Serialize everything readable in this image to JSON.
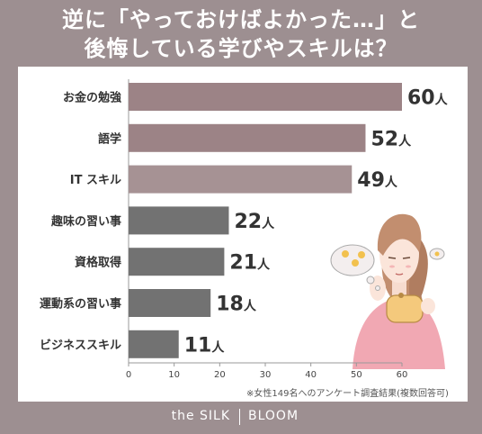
{
  "title_line1": "逆に「やっておけばよかった…」と",
  "title_line2": "後悔している学びやスキルは？",
  "footnote": "※女性149名へのアンケート調査結果(複数回答可)",
  "brand": {
    "left": "the SILK",
    "right": "BLOOM"
  },
  "colors": {
    "background": "#9d8f91",
    "bar_top": "#9c8386",
    "bar_mid": "#a69294",
    "bar_rest": "#727272"
  },
  "chart_data": {
    "type": "bar",
    "orientation": "horizontal",
    "categories": [
      "お金の勉強",
      "語学",
      "IT スキル",
      "趣味の習い事",
      "資格取得",
      "運動系の習い事",
      "ビジネススキル"
    ],
    "values": [
      60,
      52,
      49,
      22,
      21,
      18,
      11
    ],
    "value_labels": [
      "60",
      "52",
      "49",
      "22",
      "21",
      "18",
      "11"
    ],
    "unit": "人",
    "xlim": [
      0,
      60
    ],
    "xticks": [
      "0",
      "10",
      "20",
      "30",
      "40",
      "50",
      "60"
    ],
    "grid": false
  }
}
